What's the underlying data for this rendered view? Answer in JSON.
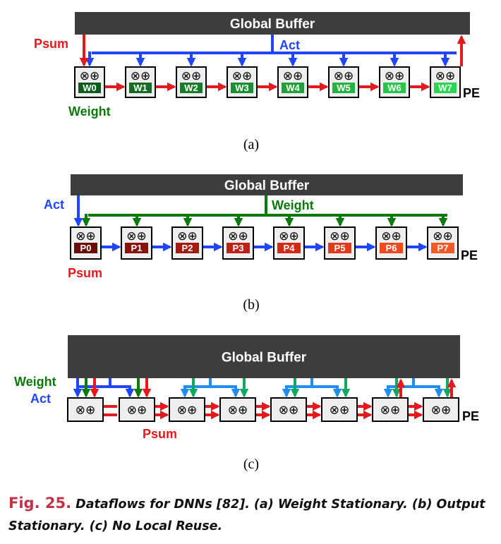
{
  "colors": {
    "buffer": "#3d3d3d",
    "act": "#1f45ff",
    "act_light": "#1f8ef0",
    "weight": "#0a7a0a",
    "weight_light": "#10a860",
    "psum": "#e8171b",
    "pe_bg": "#eeeeee",
    "caption_fig": "#c0344a"
  },
  "pe_ops": "⊗⊕",
  "panels": [
    {
      "id": "a",
      "buffer_label": "Global Buffer",
      "labels": {
        "left_top": "Psum",
        "bus": "Act",
        "left_bottom": "Weight",
        "pe": "PE"
      },
      "registers": [
        "W0",
        "W1",
        "W2",
        "W3",
        "W4",
        "W5",
        "W6",
        "W7"
      ],
      "register_colors": [
        "#0f5a1e",
        "#136b24",
        "#177d2b",
        "#1b8f33",
        "#1fa13a",
        "#23b342",
        "#27c54a",
        "#2bd752"
      ],
      "subcaption": "(a)"
    },
    {
      "id": "b",
      "buffer_label": "Global Buffer",
      "labels": {
        "left_top": "Act",
        "bus": "Weight",
        "left_bottom": "Psum",
        "pe": "PE"
      },
      "registers": [
        "P0",
        "P1",
        "P2",
        "P3",
        "P4",
        "P5",
        "P6",
        "P7"
      ],
      "register_colors": [
        "#6a0d0a",
        "#8a120e",
        "#a51a12",
        "#bd2214",
        "#d12a16",
        "#e33a1a",
        "#ee4a1f",
        "#f55a24"
      ],
      "subcaption": "(b)"
    },
    {
      "id": "c",
      "buffer_label": "Global Buffer",
      "labels": {
        "left_top": "Weight",
        "left_mid": "Act",
        "psum": "Psum",
        "pe": "PE"
      },
      "subcaption": "(c)"
    }
  ],
  "caption": {
    "fig_label": "Fig. 25.",
    "text": " Dataflows for DNNs [82]. (a) Weight Stationary. (b) Output Stationary. (c) No Local Reuse."
  }
}
